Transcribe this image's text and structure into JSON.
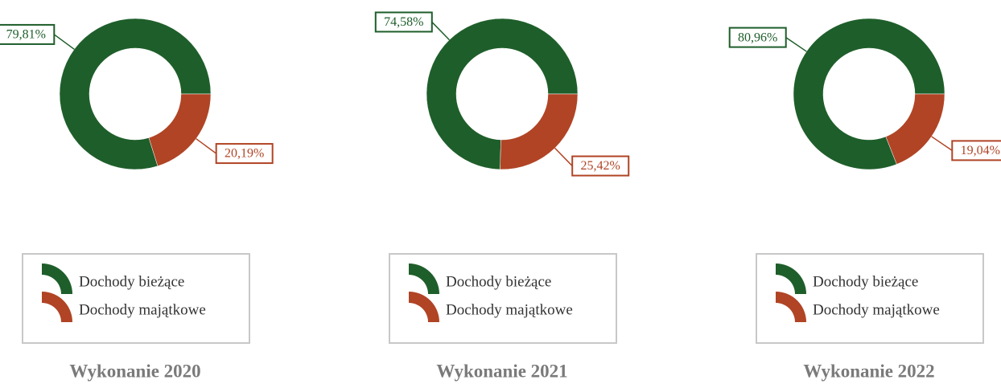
{
  "chart_data": [
    {
      "type": "donut",
      "title": "Wykonanie 2020",
      "categories": [
        "Dochody bieżące",
        "Dochody majątkowe"
      ],
      "values": [
        79.81,
        20.19
      ],
      "value_labels": [
        "79,81%",
        "20,19%"
      ],
      "colors": [
        "#1e5e2a",
        "#b04425"
      ]
    },
    {
      "type": "donut",
      "title": "Wykonanie 2021",
      "categories": [
        "Dochody bieżące",
        "Dochody majątkowe"
      ],
      "values": [
        74.58,
        25.42
      ],
      "value_labels": [
        "74,58%",
        "25,42%"
      ],
      "colors": [
        "#1e5e2a",
        "#b04425"
      ]
    },
    {
      "type": "donut",
      "title": "Wykonanie 2022",
      "categories": [
        "Dochody bieżące",
        "Dochody majątkowe"
      ],
      "values": [
        80.96,
        19.04
      ],
      "value_labels": [
        "80,96%",
        "19,04%"
      ],
      "colors": [
        "#1e5e2a",
        "#b04425"
      ]
    }
  ]
}
